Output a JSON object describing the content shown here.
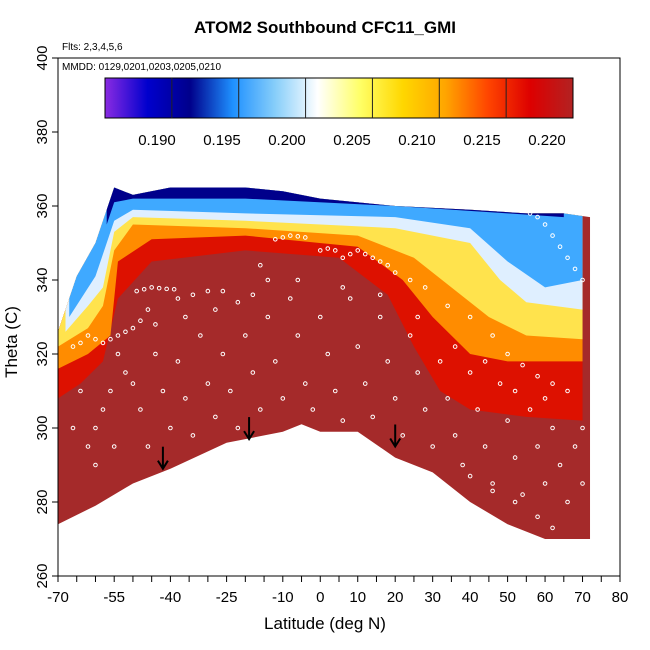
{
  "chart_data": {
    "type": "heatmap",
    "title": "ATOM2 Southbound CFC11_GMI",
    "notes": {
      "flights": "Flts: 2,3,4,5,6",
      "dates": "MMDD: 0129,0201,0203,0205,0210"
    },
    "xlabel": "Latitude (deg N)",
    "ylabel": "Theta (C)",
    "xlim": [
      -70,
      80
    ],
    "ylim": [
      260,
      400
    ],
    "x_ticks": [
      -70,
      -55,
      -40,
      -25,
      -10,
      0,
      10,
      20,
      30,
      40,
      50,
      60,
      70,
      80
    ],
    "x_minor_ticks": [
      -70,
      -65,
      -60,
      -55,
      -50,
      -45,
      -40,
      -35,
      -30,
      -25,
      -20,
      -15,
      -10,
      -5,
      0,
      5,
      10,
      15,
      20,
      25,
      30,
      35,
      40,
      45,
      50,
      55,
      60,
      65,
      70,
      75,
      80
    ],
    "y_ticks": [
      260,
      280,
      300,
      320,
      340,
      360,
      380,
      400
    ],
    "colorbar": {
      "min": 0.186,
      "max": 0.222,
      "ticks": [
        0.19,
        0.195,
        0.2,
        0.205,
        0.21,
        0.215,
        0.22
      ],
      "tick_labels": [
        "0.190",
        "0.195",
        "0.200",
        "0.205",
        "0.210",
        "0.215",
        "0.220"
      ],
      "colors": [
        "#8a2be2",
        "#0000cd",
        "#00008b",
        "#1e90ff",
        "#87cefa",
        "#ffffff",
        "#ffff66",
        "#ffd700",
        "#ffa500",
        "#ff4500",
        "#dd0000",
        "#b22222"
      ]
    },
    "bottom_boundary": [
      [
        -70,
        274
      ],
      [
        -60,
        279
      ],
      [
        -50,
        285
      ],
      [
        -40,
        289
      ],
      [
        -25,
        296
      ],
      [
        -10,
        299
      ],
      [
        -5,
        301
      ],
      [
        0,
        299
      ],
      [
        10,
        299
      ],
      [
        20,
        292
      ],
      [
        30,
        288
      ],
      [
        40,
        280
      ],
      [
        50,
        274
      ],
      [
        60,
        270
      ],
      [
        72,
        270
      ]
    ],
    "top_boundary": [
      [
        -70,
        326
      ],
      [
        -65,
        341
      ],
      [
        -60,
        350
      ],
      [
        -55,
        365
      ],
      [
        -50,
        363
      ],
      [
        -40,
        365
      ],
      [
        -30,
        365
      ],
      [
        -20,
        365
      ],
      [
        -10,
        364
      ],
      [
        0,
        362
      ],
      [
        20,
        360
      ],
      [
        40,
        359
      ],
      [
        55,
        358
      ],
      [
        65,
        358
      ],
      [
        72,
        357
      ]
    ],
    "isolines": [
      {
        "value": 0.195,
        "points": [
          [
            -57,
            355
          ],
          [
            -55,
            361
          ],
          [
            -50,
            362
          ],
          [
            -20,
            362
          ],
          [
            20,
            360
          ],
          [
            50,
            358
          ],
          [
            65,
            357
          ]
        ]
      },
      {
        "value": 0.2,
        "points": [
          [
            -67,
            330
          ],
          [
            -60,
            341
          ],
          [
            -55,
            356
          ],
          [
            -50,
            359
          ],
          [
            -20,
            358
          ],
          [
            20,
            357
          ],
          [
            40,
            354
          ],
          [
            50,
            345
          ],
          [
            60,
            338
          ],
          [
            70,
            340
          ]
        ]
      },
      {
        "value": 0.205,
        "points": [
          [
            -68,
            326
          ],
          [
            -62,
            333
          ],
          [
            -58,
            338
          ],
          [
            -55,
            353
          ],
          [
            -50,
            357
          ],
          [
            -20,
            356
          ],
          [
            20,
            354
          ],
          [
            40,
            350
          ],
          [
            48,
            340
          ],
          [
            55,
            334
          ],
          [
            70,
            332
          ]
        ]
      },
      {
        "value": 0.21,
        "points": [
          [
            -70,
            322
          ],
          [
            -62,
            327
          ],
          [
            -58,
            333
          ],
          [
            -55,
            348
          ],
          [
            -50,
            355
          ],
          [
            -20,
            354
          ],
          [
            10,
            352
          ],
          [
            25,
            346
          ],
          [
            35,
            338
          ],
          [
            45,
            330
          ],
          [
            55,
            325
          ],
          [
            70,
            324
          ]
        ]
      },
      {
        "value": 0.215,
        "points": [
          [
            -70,
            316
          ],
          [
            -62,
            320
          ],
          [
            -56,
            325
          ],
          [
            -54,
            345
          ],
          [
            -45,
            351
          ],
          [
            -20,
            352
          ],
          [
            10,
            349
          ],
          [
            22,
            340
          ],
          [
            30,
            330
          ],
          [
            40,
            320
          ],
          [
            50,
            318
          ],
          [
            70,
            318
          ]
        ]
      },
      {
        "value": 0.22,
        "points": [
          [
            -70,
            308
          ],
          [
            -64,
            312
          ],
          [
            -58,
            318
          ],
          [
            -54,
            335
          ],
          [
            -45,
            345
          ],
          [
            -20,
            348
          ],
          [
            5,
            346
          ],
          [
            18,
            336
          ],
          [
            25,
            322
          ],
          [
            32,
            310
          ],
          [
            40,
            305
          ],
          [
            55,
            303
          ],
          [
            70,
            302
          ]
        ]
      }
    ],
    "arrows": [
      [
        -42,
        289
      ],
      [
        -19,
        297
      ],
      [
        20,
        295
      ]
    ],
    "observations": [
      [
        -66,
        322
      ],
      [
        -64,
        323
      ],
      [
        -62,
        325
      ],
      [
        -60,
        324
      ],
      [
        -58,
        323
      ],
      [
        -56,
        324
      ],
      [
        -54,
        325
      ],
      [
        -52,
        326
      ],
      [
        -50,
        327
      ],
      [
        -48,
        329
      ],
      [
        -46,
        332
      ],
      [
        -49,
        337
      ],
      [
        -47,
        337.5
      ],
      [
        -45,
        338
      ],
      [
        -43,
        337.8
      ],
      [
        -41,
        337.6
      ],
      [
        -39,
        337.5
      ],
      [
        -38,
        335
      ],
      [
        -34,
        336
      ],
      [
        -30,
        337
      ],
      [
        -26,
        337
      ],
      [
        -22,
        334
      ],
      [
        -18,
        336
      ],
      [
        -14,
        340
      ],
      [
        -12,
        351
      ],
      [
        -10,
        351.5
      ],
      [
        -8,
        352
      ],
      [
        -6,
        351.8
      ],
      [
        -4,
        351.5
      ],
      [
        0,
        348
      ],
      [
        2,
        348.5
      ],
      [
        4,
        348
      ],
      [
        6,
        346
      ],
      [
        8,
        347
      ],
      [
        10,
        348
      ],
      [
        12,
        347
      ],
      [
        14,
        346
      ],
      [
        16,
        345
      ],
      [
        18,
        344
      ],
      [
        20,
        342
      ],
      [
        24,
        340
      ],
      [
        28,
        338
      ],
      [
        34,
        333
      ],
      [
        40,
        330
      ],
      [
        46,
        325
      ],
      [
        50,
        320
      ],
      [
        54,
        317
      ],
      [
        58,
        314
      ],
      [
        62,
        312
      ],
      [
        56,
        358
      ],
      [
        58,
        357
      ],
      [
        60,
        355
      ],
      [
        62,
        352
      ],
      [
        64,
        349
      ],
      [
        66,
        346
      ],
      [
        68,
        343
      ],
      [
        70,
        340
      ],
      [
        -60,
        300
      ],
      [
        -60,
        290
      ],
      [
        -56,
        310
      ],
      [
        -55,
        295
      ],
      [
        -52,
        315
      ],
      [
        -48,
        305
      ],
      [
        -46,
        295
      ],
      [
        -44,
        320
      ],
      [
        -42,
        310
      ],
      [
        -40,
        300
      ],
      [
        -38,
        318
      ],
      [
        -36,
        308
      ],
      [
        -34,
        298
      ],
      [
        -32,
        325
      ],
      [
        -30,
        312
      ],
      [
        -28,
        303
      ],
      [
        -26,
        320
      ],
      [
        -24,
        310
      ],
      [
        -22,
        300
      ],
      [
        -20,
        325
      ],
      [
        -18,
        315
      ],
      [
        -16,
        305
      ],
      [
        -14,
        330
      ],
      [
        -12,
        318
      ],
      [
        -10,
        308
      ],
      [
        -8,
        335
      ],
      [
        -6,
        325
      ],
      [
        -4,
        312
      ],
      [
        -2,
        305
      ],
      [
        0,
        330
      ],
      [
        2,
        320
      ],
      [
        4,
        310
      ],
      [
        6,
        302
      ],
      [
        8,
        335
      ],
      [
        10,
        322
      ],
      [
        12,
        312
      ],
      [
        14,
        303
      ],
      [
        16,
        330
      ],
      [
        18,
        318
      ],
      [
        20,
        308
      ],
      [
        22,
        298
      ],
      [
        24,
        325
      ],
      [
        26,
        315
      ],
      [
        28,
        305
      ],
      [
        30,
        295
      ],
      [
        32,
        318
      ],
      [
        34,
        308
      ],
      [
        36,
        298
      ],
      [
        38,
        290
      ],
      [
        40,
        315
      ],
      [
        42,
        305
      ],
      [
        44,
        295
      ],
      [
        46,
        285
      ],
      [
        48,
        312
      ],
      [
        50,
        302
      ],
      [
        52,
        292
      ],
      [
        54,
        282
      ],
      [
        56,
        305
      ],
      [
        58,
        295
      ],
      [
        60,
        285
      ],
      [
        62,
        300
      ],
      [
        64,
        290
      ],
      [
        66,
        280
      ],
      [
        68,
        295
      ],
      [
        70,
        285
      ],
      [
        -66,
        300
      ],
      [
        -64,
        310
      ],
      [
        -62,
        295
      ],
      [
        -58,
        305
      ],
      [
        -54,
        320
      ],
      [
        -50,
        312
      ],
      [
        -44,
        328
      ],
      [
        -36,
        330
      ],
      [
        -28,
        332
      ],
      [
        -16,
        344
      ],
      [
        -6,
        340
      ],
      [
        6,
        338
      ],
      [
        16,
        336
      ],
      [
        26,
        330
      ],
      [
        36,
        322
      ],
      [
        44,
        318
      ],
      [
        52,
        310
      ],
      [
        60,
        308
      ],
      [
        66,
        310
      ],
      [
        70,
        300
      ],
      [
        62,
        273
      ],
      [
        58,
        276
      ],
      [
        52,
        280
      ],
      [
        46,
        283
      ],
      [
        40,
        287
      ]
    ]
  }
}
